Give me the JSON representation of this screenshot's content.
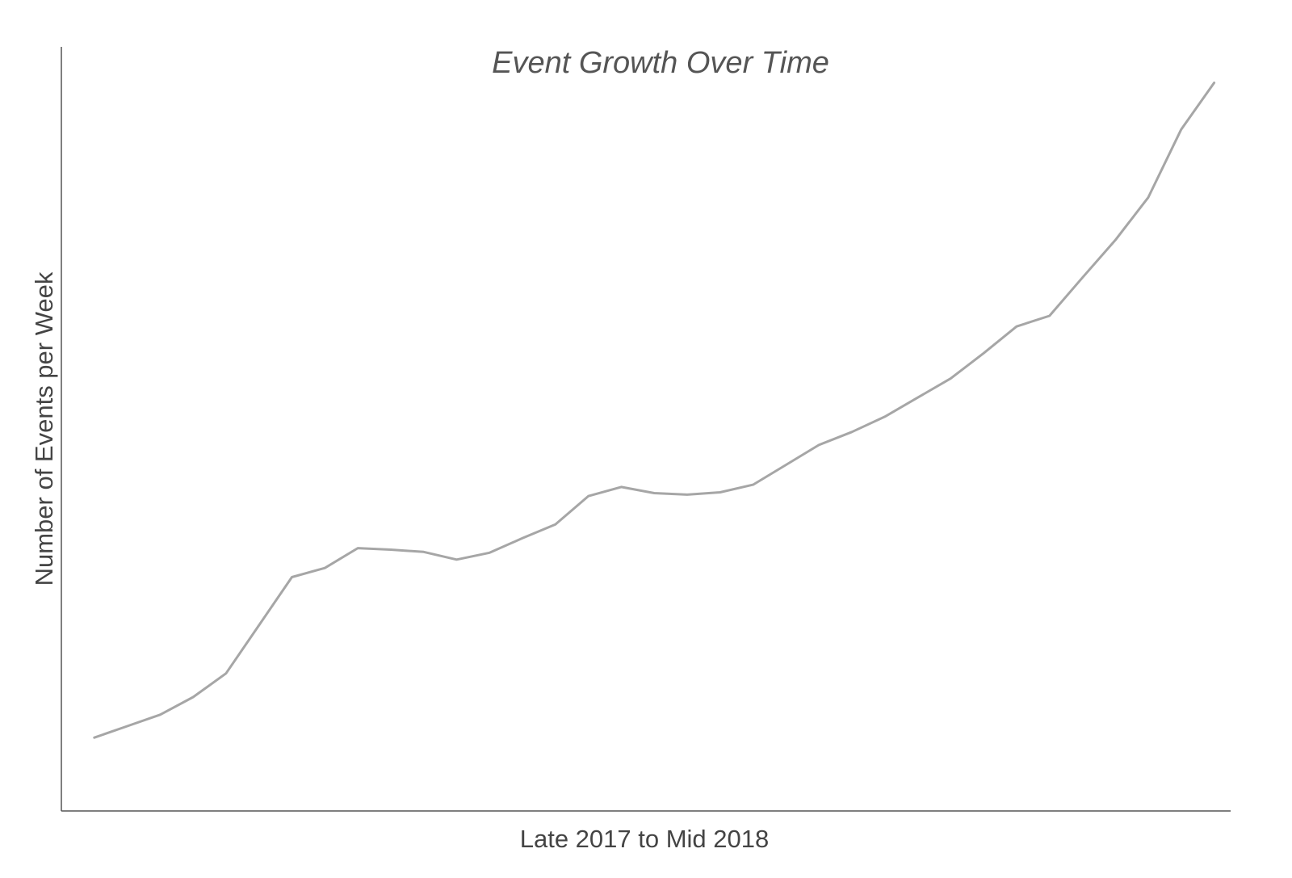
{
  "chart_data": {
    "type": "line",
    "title": "Event Growth Over Time",
    "xlabel": "Late 2017 to Mid 2018",
    "ylabel": "Number of Events per Week",
    "ticks_shown": false,
    "grid": false,
    "x": [
      1,
      2,
      3,
      4,
      5,
      6,
      7,
      8,
      9,
      10,
      11,
      12,
      13,
      14,
      15,
      16,
      17,
      18,
      19,
      20,
      21,
      22,
      23,
      24,
      25,
      26,
      27,
      28,
      29,
      30,
      31,
      32,
      33,
      34,
      35
    ],
    "xlim": [
      0,
      35.5
    ],
    "ylim": [
      0,
      100
    ],
    "series": [
      {
        "color": "#a6a6a6",
        "values": [
          9.6,
          11.1,
          12.6,
          14.9,
          18.0,
          24.3,
          30.6,
          31.8,
          34.4,
          34.2,
          33.9,
          32.9,
          33.8,
          35.7,
          37.5,
          41.2,
          42.4,
          41.6,
          41.4,
          41.7,
          42.7,
          45.3,
          47.9,
          49.6,
          51.6,
          54.1,
          56.6,
          59.9,
          63.4,
          64.8,
          69.8,
          74.7,
          80.3,
          89.2,
          95.3
        ]
      }
    ]
  }
}
